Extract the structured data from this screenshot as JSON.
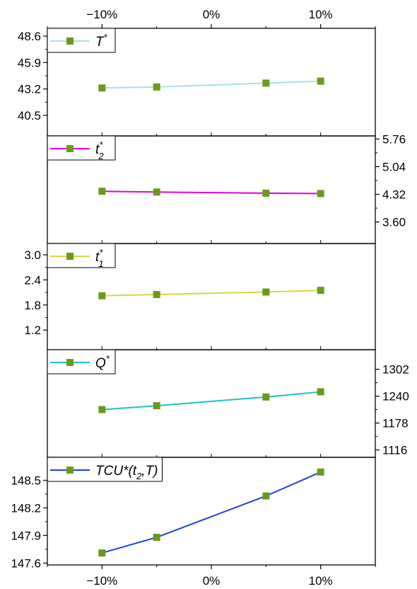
{
  "x_tick_labels": [
    "−10%",
    "0%",
    "10%"
  ],
  "chart_data": [
    {
      "type": "line",
      "legend": {
        "main": "T",
        "sup": "*",
        "sub": ""
      },
      "color": "#a8e0ef",
      "marker_color": "#6a9a1a",
      "x": [
        -10,
        -5,
        5,
        10
      ],
      "y": [
        43.3,
        43.4,
        43.8,
        44.0
      ],
      "ylim": [
        38.4,
        49.4
      ],
      "yticks": [
        40.5,
        43.2,
        45.9,
        48.6
      ],
      "ytick_labels": [
        "40.5",
        "43.2",
        "45.9",
        "48.6"
      ],
      "axis_side": "left"
    },
    {
      "type": "line",
      "legend": {
        "main": "t",
        "sup": "*",
        "sub": "2"
      },
      "color": "#e000e0",
      "marker_color": "#6a9a1a",
      "x": [
        -10,
        -5,
        5,
        10
      ],
      "y": [
        4.4,
        4.38,
        4.35,
        4.34
      ],
      "ylim": [
        3.04,
        5.84
      ],
      "yticks": [
        3.6,
        4.32,
        5.04,
        5.76
      ],
      "ytick_labels": [
        "3.60",
        "4.32",
        "5.04",
        "5.76"
      ],
      "axis_side": "right"
    },
    {
      "type": "line",
      "legend": {
        "main": "t",
        "sup": "*",
        "sub": "1"
      },
      "color": "#d8d840",
      "marker_color": "#6a9a1a",
      "x": [
        -10,
        -5,
        5,
        10
      ],
      "y": [
        2.02,
        2.05,
        2.11,
        2.15
      ],
      "ylim": [
        0.73,
        3.27
      ],
      "yticks": [
        1.2,
        1.8,
        2.4,
        3.0
      ],
      "ytick_labels": [
        "1.2",
        "1.8",
        "2.4",
        "3.0"
      ],
      "axis_side": "left"
    },
    {
      "type": "line",
      "legend": {
        "main": "Q",
        "sup": "*",
        "sub": ""
      },
      "color": "#20c0c8",
      "marker_color": "#6a9a1a",
      "x": [
        -10,
        -5,
        5,
        10
      ],
      "y": [
        1209,
        1218,
        1238,
        1250
      ],
      "ylim": [
        1099,
        1347
      ],
      "yticks": [
        1116,
        1178,
        1240,
        1302
      ],
      "ytick_labels": [
        "1116",
        "1178",
        "1240",
        "1302"
      ],
      "axis_side": "right"
    },
    {
      "type": "line",
      "legend": {
        "main": "TCU*(t",
        "sup": "",
        "sub": "2",
        "tail": ",T)"
      },
      "color": "#2040e0",
      "marker_color": "#6a9a1a",
      "x": [
        -10,
        -5,
        5,
        10
      ],
      "y": [
        147.71,
        147.88,
        148.33,
        148.59
      ],
      "ylim": [
        147.58,
        148.75
      ],
      "yticks": [
        147.6,
        147.9,
        148.2,
        148.5
      ],
      "ytick_labels": [
        "147.6",
        "147.9",
        "148.2",
        "148.5"
      ],
      "axis_side": "left"
    }
  ]
}
